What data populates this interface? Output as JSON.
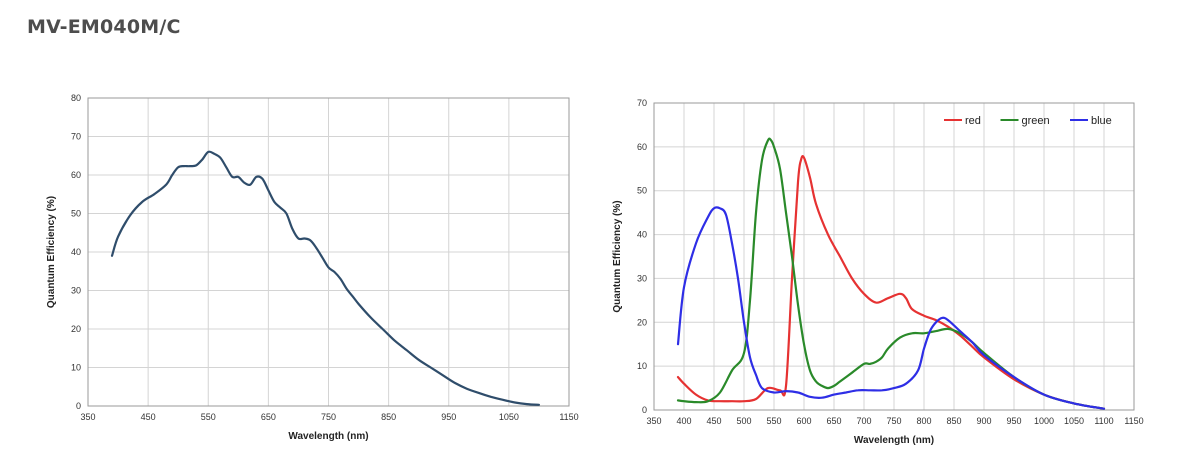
{
  "page": {
    "title": "MV-EM040M/C"
  },
  "chart_data": [
    {
      "type": "line",
      "xlabel": "Wavelength (nm)",
      "ylabel": "Quantum Efficiency (%)",
      "xlim": [
        350,
        1150
      ],
      "ylim": [
        0,
        80
      ],
      "xticks": [
        350,
        450,
        550,
        650,
        750,
        850,
        950,
        1050,
        1150
      ],
      "yticks": [
        0,
        10,
        20,
        30,
        40,
        50,
        60,
        70,
        80
      ],
      "grid": true,
      "colors": [
        "#2f4d6b"
      ],
      "series": [
        {
          "x": [
            390,
            400,
            420,
            440,
            460,
            480,
            490,
            500,
            510,
            520,
            530,
            540,
            550,
            560,
            570,
            580,
            590,
            600,
            610,
            620,
            630,
            640,
            650,
            660,
            670,
            680,
            690,
            700,
            710,
            720,
            730,
            740,
            750,
            760,
            770,
            780,
            790,
            800,
            820,
            840,
            860,
            880,
            900,
            920,
            940,
            960,
            980,
            1000,
            1020,
            1040,
            1060,
            1080,
            1100
          ],
          "y": [
            39,
            44,
            49.5,
            53,
            55,
            57.5,
            60,
            62,
            62.3,
            62.3,
            62.5,
            64,
            66,
            65.5,
            64.5,
            62,
            59.5,
            59.5,
            58,
            57.5,
            59.5,
            59,
            56,
            53,
            51.5,
            50,
            46,
            43.5,
            43.5,
            43,
            41,
            38.5,
            36,
            34.8,
            33,
            30.5,
            28.5,
            26.5,
            23,
            20,
            17,
            14.5,
            12,
            10,
            8,
            6,
            4.5,
            3.4,
            2.4,
            1.6,
            0.9,
            0.5,
            0.3
          ]
        }
      ]
    },
    {
      "type": "line",
      "xlabel": "Wavelength (nm)",
      "ylabel": "Quantum Efficiency (%)",
      "xlim": [
        350,
        1150
      ],
      "ylim": [
        0,
        70
      ],
      "xticks": [
        350,
        400,
        450,
        500,
        550,
        600,
        650,
        700,
        750,
        800,
        850,
        900,
        950,
        1000,
        1050,
        1100,
        1150
      ],
      "yticks": [
        0,
        10,
        20,
        30,
        40,
        50,
        60,
        70
      ],
      "grid": true,
      "legend": "top-right",
      "series": [
        {
          "name": "red",
          "color": "#e63232",
          "x": [
            390,
            400,
            420,
            440,
            460,
            480,
            500,
            520,
            540,
            560,
            570,
            580,
            590,
            595,
            600,
            610,
            620,
            640,
            660,
            680,
            700,
            720,
            740,
            760,
            770,
            780,
            800,
            820,
            840,
            860,
            880,
            900,
            950,
            1000,
            1050,
            1100
          ],
          "y": [
            7.5,
            6,
            3.5,
            2.2,
            2,
            2,
            2,
            2.5,
            5,
            4.5,
            5.5,
            30,
            52,
            57,
            57.5,
            53,
            47,
            40,
            35,
            30,
            26.5,
            24.5,
            25.5,
            26.5,
            25.5,
            23,
            21.5,
            20.5,
            19,
            17,
            14.5,
            12,
            7,
            3.5,
            1.5,
            0.3
          ]
        },
        {
          "name": "green",
          "color": "#2a8a2a",
          "x": [
            390,
            400,
            420,
            440,
            460,
            480,
            500,
            510,
            520,
            530,
            540,
            545,
            550,
            560,
            570,
            580,
            590,
            600,
            610,
            620,
            630,
            640,
            650,
            660,
            680,
            700,
            710,
            720,
            730,
            740,
            760,
            780,
            800,
            820,
            840,
            860,
            880,
            900,
            950,
            1000,
            1050,
            1100
          ],
          "y": [
            2.2,
            2,
            1.8,
            2,
            4,
            9,
            13,
            25,
            45,
            57,
            61.5,
            61.5,
            60,
            55,
            45,
            35,
            24,
            15,
            9,
            6.5,
            5.5,
            5,
            5.5,
            6.5,
            8.5,
            10.5,
            10.5,
            11,
            12,
            14,
            16.5,
            17.5,
            17.5,
            18,
            18.5,
            17.5,
            15.5,
            13,
            7.5,
            3.5,
            1.5,
            0.3
          ]
        },
        {
          "name": "blue",
          "color": "#2e2ee6",
          "x": [
            390,
            400,
            420,
            440,
            450,
            460,
            470,
            480,
            490,
            500,
            510,
            520,
            530,
            550,
            570,
            590,
            610,
            630,
            650,
            670,
            690,
            710,
            730,
            750,
            770,
            790,
            800,
            810,
            820,
            830,
            840,
            860,
            880,
            900,
            950,
            1000,
            1050,
            1100
          ],
          "y": [
            15,
            28,
            38,
            44,
            46,
            46,
            44.5,
            38,
            30,
            20,
            12,
            8,
            5,
            4,
            4.3,
            4,
            3,
            2.8,
            3.5,
            4,
            4.5,
            4.5,
            4.5,
            5,
            6,
            9,
            14,
            18,
            20,
            21,
            20.5,
            18,
            15.5,
            12.5,
            7.5,
            3.5,
            1.5,
            0.3
          ]
        }
      ]
    }
  ]
}
